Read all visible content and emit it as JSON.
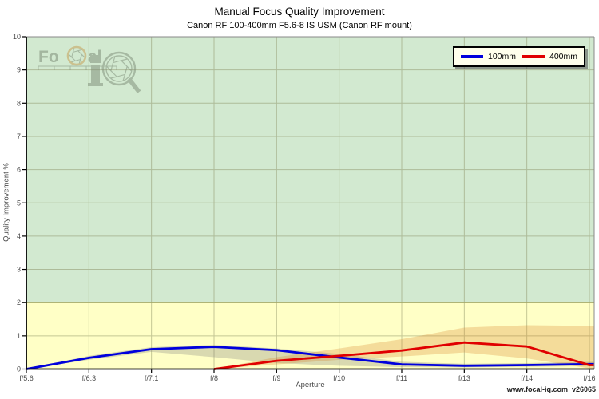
{
  "page": {
    "title": "Manual Focus Quality Improvement",
    "subtitle": "Canon RF 100-400mm F5.6-8 IS USM (Canon RF mount)",
    "footer": "www.focal-iq.com  v26065",
    "watermark": {
      "brand": "FoCal",
      "monogram": "iQ"
    }
  },
  "chart_data": {
    "type": "line",
    "title": "Manual Focus Quality Improvement",
    "subtitle": "Canon RF 100-400mm F5.6-8 IS USM (Canon RF mount)",
    "xlabel": "Aperture",
    "ylabel": "Quality Improvement %",
    "ylim": [
      0,
      10
    ],
    "y_ticks": [
      0,
      1,
      2,
      3,
      4,
      5,
      6,
      7,
      8,
      9,
      10
    ],
    "categories": [
      "f/5.6",
      "f/6.3",
      "f/7.1",
      "f/8",
      "f/9",
      "f/10",
      "f/11",
      "f/13",
      "f/14",
      "f/16"
    ],
    "grid": true,
    "legend_position": "top-right",
    "zones": [
      {
        "from": 0,
        "to": 2,
        "color": "#ffffc6"
      },
      {
        "from": 2,
        "to": 10,
        "color": "#d2e9d0"
      }
    ],
    "series": [
      {
        "name": "100mm",
        "color": "#0000dd",
        "band_color": "rgba(120,120,120,0.28)",
        "values": [
          0,
          0.34,
          0.6,
          0.67,
          0.57,
          0.35,
          0.14,
          0.1,
          0.12,
          0.15
        ],
        "band_low": [
          0,
          0.28,
          0.52,
          0.36,
          0.18,
          0.1,
          0.06,
          0.05,
          0.07,
          0.09
        ],
        "band_high": [
          0,
          0.4,
          0.66,
          0.73,
          0.62,
          0.46,
          0.22,
          0.16,
          0.18,
          0.22
        ]
      },
      {
        "name": "400mm",
        "color": "#e00000",
        "band_color": "rgba(215,130,40,0.28)",
        "values": [
          null,
          null,
          null,
          0,
          0.25,
          0.4,
          0.56,
          0.8,
          0.68,
          0.12
        ],
        "band_low": [
          null,
          null,
          null,
          0,
          0.14,
          0.28,
          0.38,
          0.5,
          0.32,
          0.02
        ],
        "band_high": [
          null,
          null,
          null,
          0,
          0.36,
          0.62,
          0.9,
          1.25,
          1.32,
          1.3
        ]
      }
    ],
    "colors": {
      "grid": "#8a8f63",
      "zone_boundary": "#9aa05f",
      "axis": "#000000",
      "frame": "#888888",
      "legend_bg": "#ffffec"
    }
  }
}
